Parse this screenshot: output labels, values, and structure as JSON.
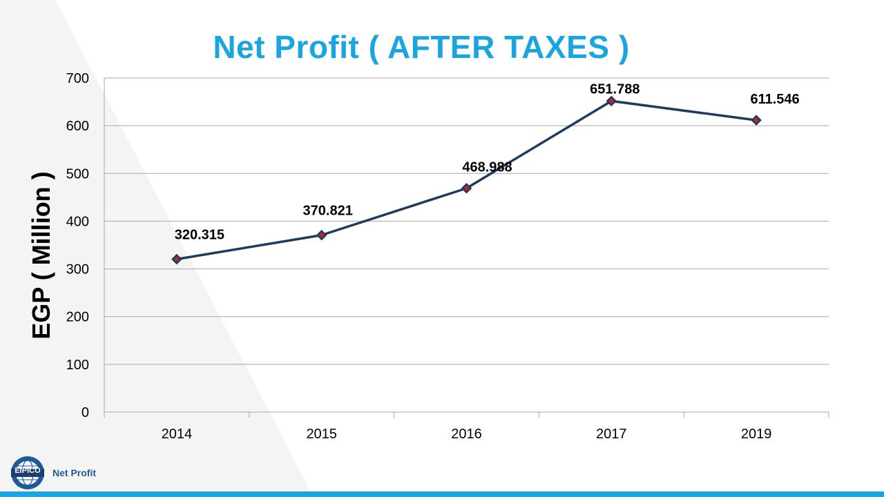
{
  "slide": {
    "title": "Net Profit ( AFTER TAXES )",
    "footer_label": "Net Profit",
    "logo_text": "EIPICO"
  },
  "colors": {
    "title": "#1ba5e0",
    "line": "#1f3a5f",
    "marker_center": "#c0242b",
    "grid": "#a6a6a6",
    "accent_bar": "#1ba5e0"
  },
  "chart_data": {
    "type": "line",
    "categories": [
      "2014",
      "2015",
      "2016",
      "2017",
      "2019"
    ],
    "values": [
      320.315,
      370.821,
      468.988,
      651.788,
      611.546
    ],
    "data_labels": [
      "320.315",
      "370.821",
      "468.988",
      "651.788",
      "611.546"
    ],
    "ylabel": "EGP ( Million )",
    "xlabel": "",
    "ylim": [
      0,
      700
    ],
    "yticks": [
      0,
      100,
      200,
      300,
      400,
      500,
      600,
      700
    ],
    "ytick_labels": [
      "0",
      "100",
      "200",
      "300",
      "400",
      "500",
      "600",
      "700"
    ],
    "grid": true,
    "legend": "none"
  }
}
